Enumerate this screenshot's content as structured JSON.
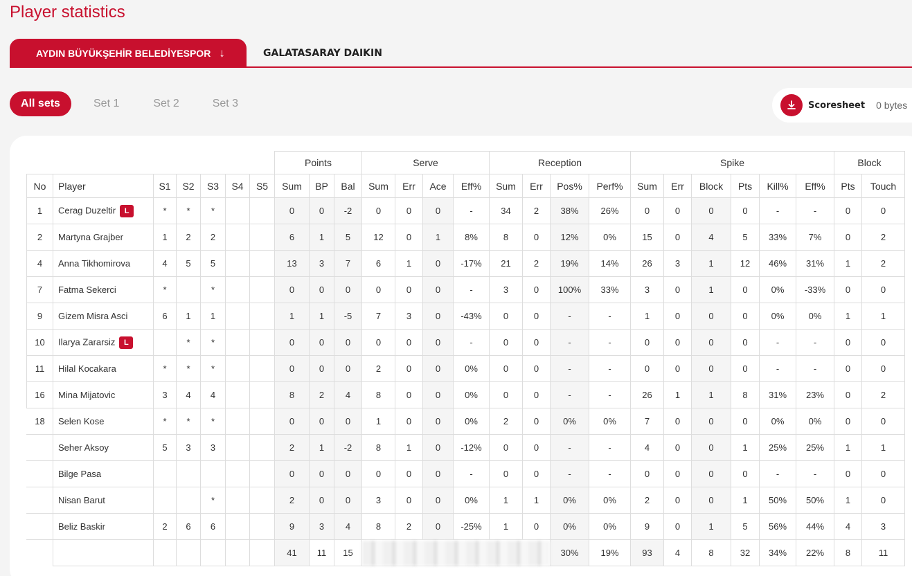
{
  "page": {
    "title": "Player statistics"
  },
  "teams": {
    "active": "AYDIN BÜYÜKŞEHİR BELEDİYESPOR",
    "active_icon": "arrow-down-icon",
    "other": "GALATASARAY DAIKIN"
  },
  "sets": {
    "all": "All sets",
    "s1": "Set 1",
    "s2": "Set 2",
    "s3": "Set 3"
  },
  "scoresheet": {
    "label": "Scoresheet",
    "size": "0 bytes",
    "icon": "download-icon"
  },
  "colors": {
    "accent": "#c8102e"
  },
  "table": {
    "groups": [
      "Points",
      "Serve",
      "Reception",
      "Spike",
      "Block"
    ],
    "headers": [
      "No",
      "Player",
      "S1",
      "S2",
      "S3",
      "S4",
      "S5",
      "Sum",
      "BP",
      "Bal",
      "Sum",
      "Err",
      "Ace",
      "Eff%",
      "Sum",
      "Err",
      "Pos%",
      "Perf%",
      "Sum",
      "Err",
      "Block",
      "Pts",
      "Kill%",
      "Eff%",
      "Pts",
      "Touch"
    ],
    "libero_badge": "L",
    "rows": [
      [
        "1",
        "Cerag Duzeltir",
        "*",
        "*",
        "*",
        "",
        "",
        "0",
        "0",
        "-2",
        "0",
        "0",
        "0",
        "-",
        "34",
        "2",
        "38%",
        "26%",
        "0",
        "0",
        "0",
        "0",
        "-",
        "-",
        "0",
        "0"
      ],
      [
        "2",
        "Martyna Grajber",
        "1",
        "2",
        "2",
        "",
        "",
        "6",
        "1",
        "5",
        "12",
        "0",
        "1",
        "8%",
        "8",
        "0",
        "12%",
        "0%",
        "15",
        "0",
        "4",
        "5",
        "33%",
        "7%",
        "0",
        "2"
      ],
      [
        "4",
        "Anna Tikhomirova",
        "4",
        "5",
        "5",
        "",
        "",
        "13",
        "3",
        "7",
        "6",
        "1",
        "0",
        "-17%",
        "21",
        "2",
        "19%",
        "14%",
        "26",
        "3",
        "1",
        "12",
        "46%",
        "31%",
        "1",
        "2"
      ],
      [
        "7",
        "Fatma Sekerci",
        "*",
        "",
        "*",
        "",
        "",
        "0",
        "0",
        "0",
        "0",
        "0",
        "0",
        "-",
        "3",
        "0",
        "100%",
        "33%",
        "3",
        "0",
        "1",
        "0",
        "0%",
        "-33%",
        "0",
        "0"
      ],
      [
        "9",
        "Gizem Misra Asci",
        "6",
        "1",
        "1",
        "",
        "",
        "1",
        "1",
        "-5",
        "7",
        "3",
        "0",
        "-43%",
        "0",
        "0",
        "-",
        "-",
        "1",
        "0",
        "0",
        "0",
        "0%",
        "0%",
        "1",
        "1"
      ],
      [
        "10",
        "Ilarya Zararsiz",
        "",
        "*",
        "*",
        "",
        "",
        "0",
        "0",
        "0",
        "0",
        "0",
        "0",
        "-",
        "0",
        "0",
        "-",
        "-",
        "0",
        "0",
        "0",
        "0",
        "-",
        "-",
        "0",
        "0"
      ],
      [
        "11",
        "Hilal Kocakara",
        "*",
        "*",
        "*",
        "",
        "",
        "0",
        "0",
        "0",
        "2",
        "0",
        "0",
        "0%",
        "0",
        "0",
        "-",
        "-",
        "0",
        "0",
        "0",
        "0",
        "-",
        "-",
        "0",
        "0"
      ],
      [
        "16",
        "Mina Mijatovic",
        "3",
        "4",
        "4",
        "",
        "",
        "8",
        "2",
        "4",
        "8",
        "0",
        "0",
        "0%",
        "0",
        "0",
        "-",
        "-",
        "26",
        "1",
        "1",
        "8",
        "31%",
        "23%",
        "0",
        "2"
      ],
      [
        "18",
        "Selen Kose",
        "*",
        "*",
        "*",
        "",
        "",
        "0",
        "0",
        "0",
        "1",
        "0",
        "0",
        "0%",
        "2",
        "0",
        "0%",
        "0%",
        "7",
        "0",
        "0",
        "0",
        "0%",
        "0%",
        "0",
        "0"
      ],
      [
        "",
        "Seher Aksoy",
        "5",
        "3",
        "3",
        "",
        "",
        "2",
        "1",
        "-2",
        "8",
        "1",
        "0",
        "-12%",
        "0",
        "0",
        "-",
        "-",
        "4",
        "0",
        "0",
        "1",
        "25%",
        "25%",
        "1",
        "1"
      ],
      [
        "",
        "Bilge Pasa",
        "",
        "",
        "",
        "",
        "",
        "0",
        "0",
        "0",
        "0",
        "0",
        "0",
        "-",
        "0",
        "0",
        "-",
        "-",
        "0",
        "0",
        "0",
        "0",
        "-",
        "-",
        "0",
        "0"
      ],
      [
        "",
        "Nisan Barut",
        "",
        "",
        "*",
        "",
        "",
        "2",
        "0",
        "0",
        "3",
        "0",
        "0",
        "0%",
        "1",
        "1",
        "0%",
        "0%",
        "2",
        "0",
        "0",
        "1",
        "50%",
        "50%",
        "1",
        "0"
      ],
      [
        "",
        "Beliz Baskir",
        "2",
        "6",
        "6",
        "",
        "",
        "9",
        "3",
        "4",
        "8",
        "2",
        "0",
        "-25%",
        "1",
        "0",
        "0%",
        "0%",
        "9",
        "0",
        "1",
        "5",
        "56%",
        "44%",
        "4",
        "3"
      ]
    ],
    "totals": [
      "41",
      "11",
      "15",
      "30%",
      "19%",
      "93",
      "4",
      "8",
      "32",
      "34%",
      "22%",
      "8",
      "11"
    ]
  }
}
